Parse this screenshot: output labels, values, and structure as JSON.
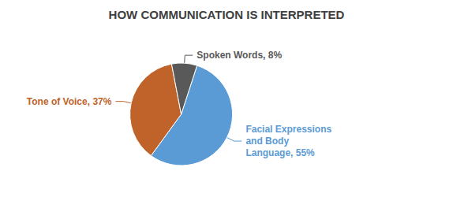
{
  "chart_data": {
    "type": "pie",
    "title": "HOW COMMUNICATION IS INTERPRETED",
    "categories": [
      "Facial Expressions\nand Body\nLanguage, 55%",
      "Tone of Voice, 37%",
      "Spoken Words, 8%"
    ],
    "values": [
      55,
      37,
      8
    ],
    "colors": [
      "#5B9BD5",
      "#C0632A",
      "#595959"
    ]
  }
}
